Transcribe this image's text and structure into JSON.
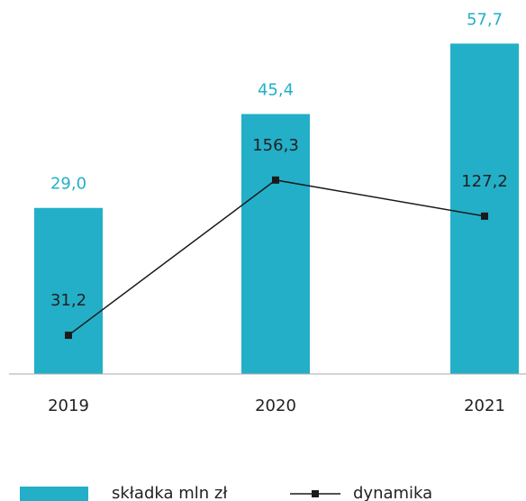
{
  "chart_data": {
    "type": "bar",
    "categories": [
      "2019",
      "2020",
      "2021"
    ],
    "series": [
      {
        "name": "składka mln zł",
        "type": "bar",
        "color": "#23afc8",
        "values": [
          29.0,
          45.4,
          57.7
        ],
        "value_labels": [
          "29,0",
          "45,4",
          "57,7"
        ]
      },
      {
        "name": "dynamika",
        "type": "line",
        "color": "#1a1a1a",
        "axis": "y2",
        "values": [
          31.2,
          156.3,
          127.2
        ],
        "value_labels": [
          "31,2",
          "156,3",
          "127,2"
        ]
      }
    ],
    "ylim": [
      0,
      65
    ],
    "y2lim": [
      0,
      300
    ]
  }
}
